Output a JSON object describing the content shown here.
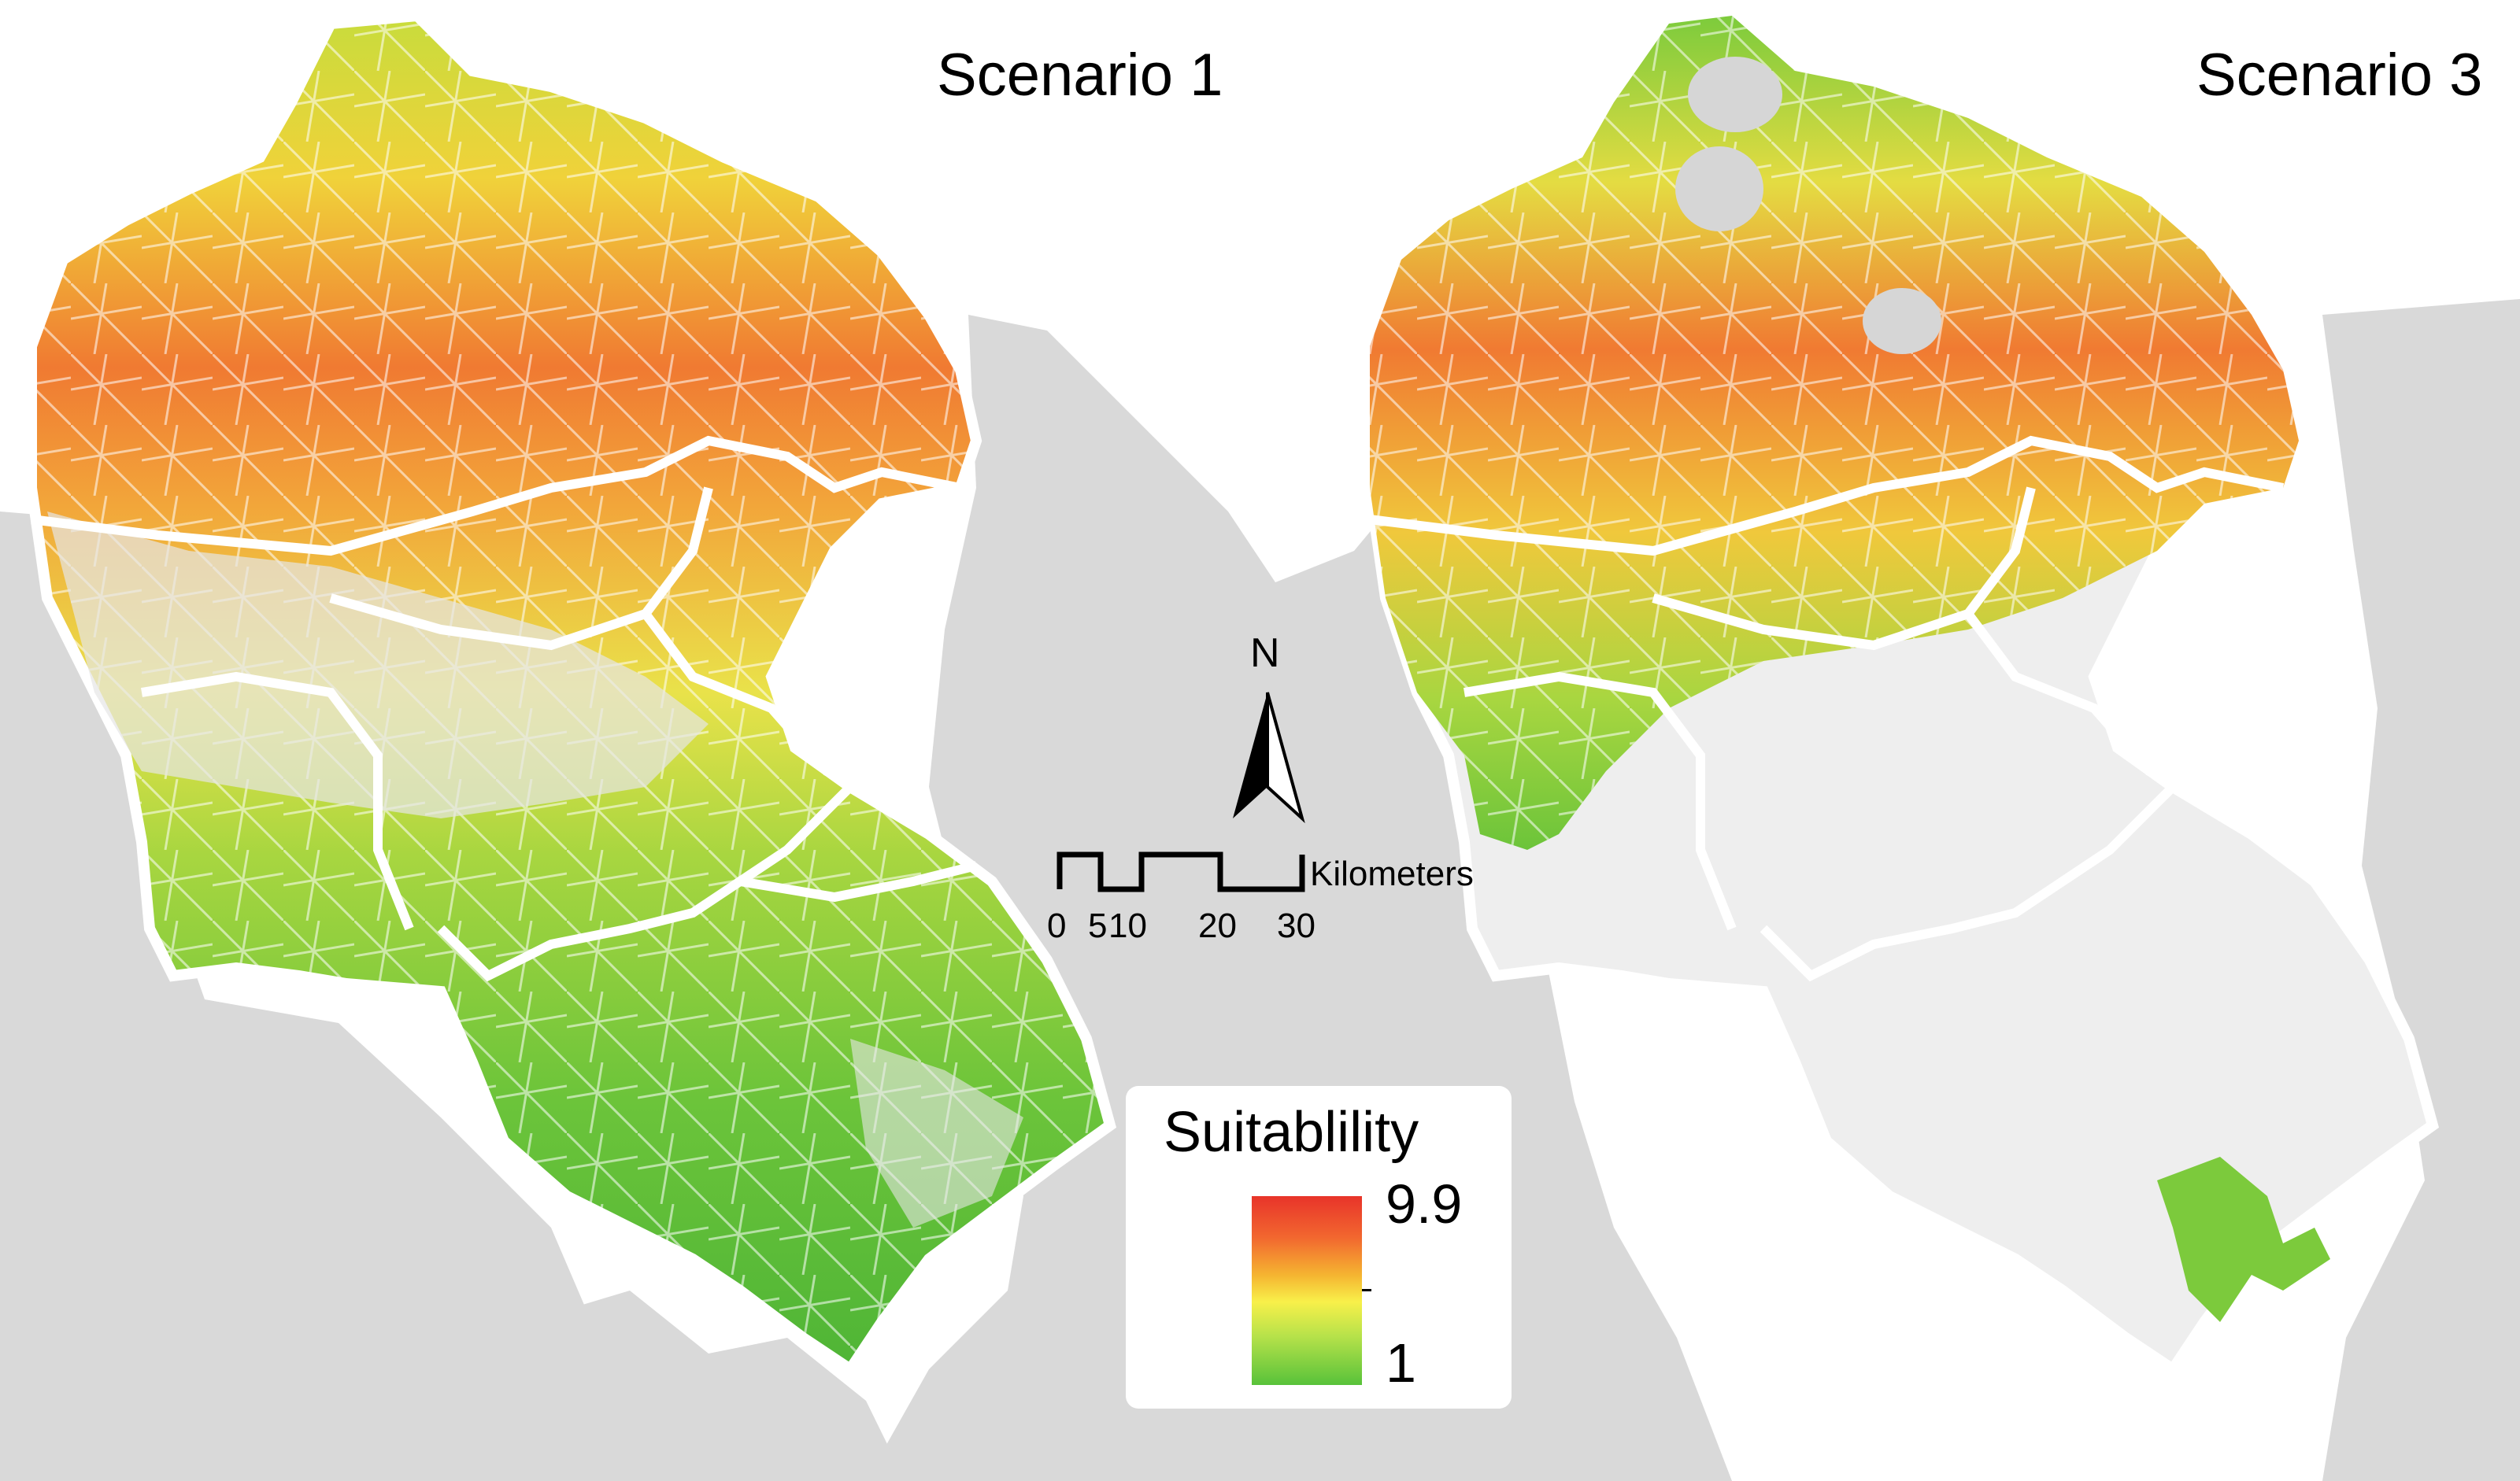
{
  "panels": [
    {
      "title": "Scenario 1"
    },
    {
      "title": "Scenario 3"
    }
  ],
  "north_arrow": {
    "label": "N",
    "icon": "north-arrow-icon"
  },
  "scale_bar": {
    "unit": "Kilometers",
    "ticks": [
      "0",
      "5",
      "10",
      "20",
      "30"
    ]
  },
  "legend": {
    "title": "Suitablility",
    "max_label": "9.9",
    "min_label": "1",
    "color_ramp": [
      "#e8342a",
      "#f2672f",
      "#f5b531",
      "#f8f04a",
      "#b7e24a",
      "#58c23a"
    ]
  },
  "colors": {
    "background_land": "#d9d9d9",
    "hillshade": "#eeeeee",
    "boundary": "#ffffff",
    "high": "#e8342a",
    "medium": "#f5d23c",
    "low": "#5cbf3a"
  }
}
